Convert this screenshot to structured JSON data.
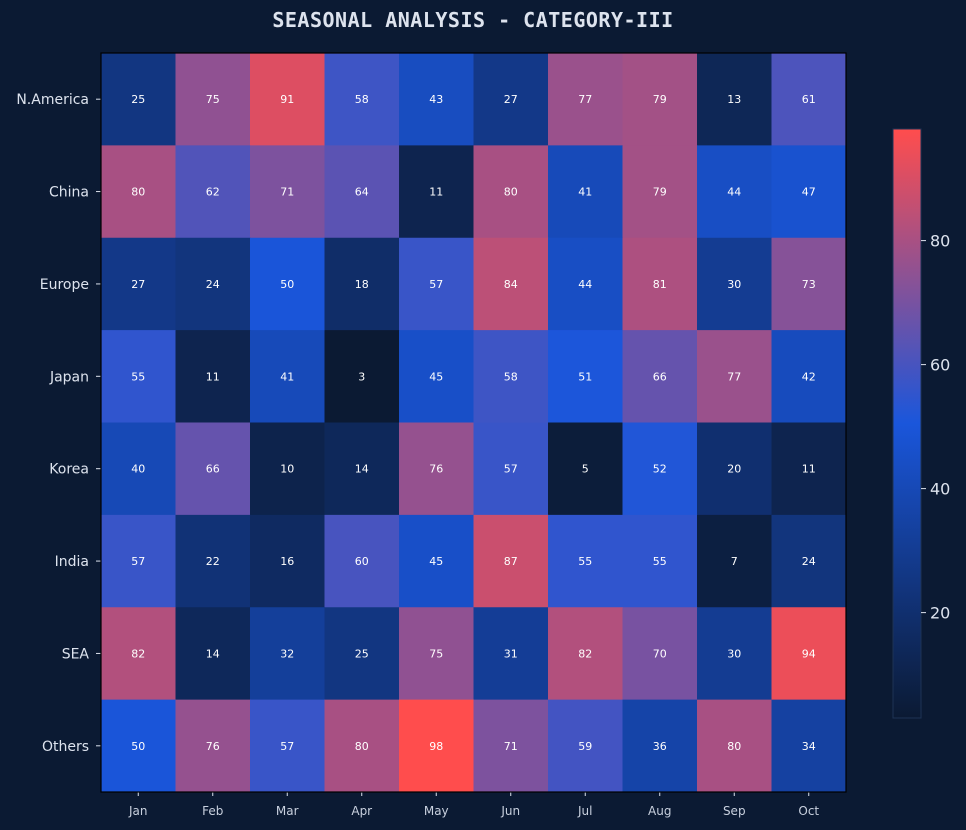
{
  "colors": {
    "background": "#0b1a33",
    "colormap": [
      "#0b1a33",
      "#1a56db",
      "#ff4d4d"
    ],
    "text": "#dde3ee",
    "cell_text": "#ffffff"
  },
  "chart_data": {
    "type": "heatmap",
    "title": "SEASONAL ANALYSIS - CATEGORY-III",
    "xlabel": "",
    "ylabel": "",
    "x": [
      "Jan",
      "Feb",
      "Mar",
      "Apr",
      "May",
      "Jun",
      "Jul",
      "Aug",
      "Sep",
      "Oct"
    ],
    "y": [
      "N.America",
      "China",
      "Europe",
      "Japan",
      "Korea",
      "India",
      "SEA",
      "Others"
    ],
    "values": [
      [
        25,
        75,
        91,
        58,
        43,
        27,
        77,
        79,
        13,
        61
      ],
      [
        80,
        62,
        71,
        64,
        11,
        80,
        41,
        79,
        44,
        47
      ],
      [
        27,
        24,
        50,
        18,
        57,
        84,
        44,
        81,
        30,
        73
      ],
      [
        55,
        11,
        41,
        3,
        45,
        58,
        51,
        66,
        77,
        42
      ],
      [
        40,
        66,
        10,
        14,
        76,
        57,
        5,
        52,
        20,
        11
      ],
      [
        57,
        22,
        16,
        60,
        45,
        87,
        55,
        55,
        7,
        24
      ],
      [
        82,
        14,
        32,
        25,
        75,
        31,
        82,
        70,
        30,
        94
      ],
      [
        50,
        76,
        57,
        80,
        98,
        71,
        59,
        36,
        80,
        34
      ]
    ],
    "colorbar": {
      "range": [
        3,
        98
      ],
      "ticks": [
        20,
        40,
        60,
        80
      ]
    },
    "grid": false,
    "legend": "colorbar-right"
  }
}
